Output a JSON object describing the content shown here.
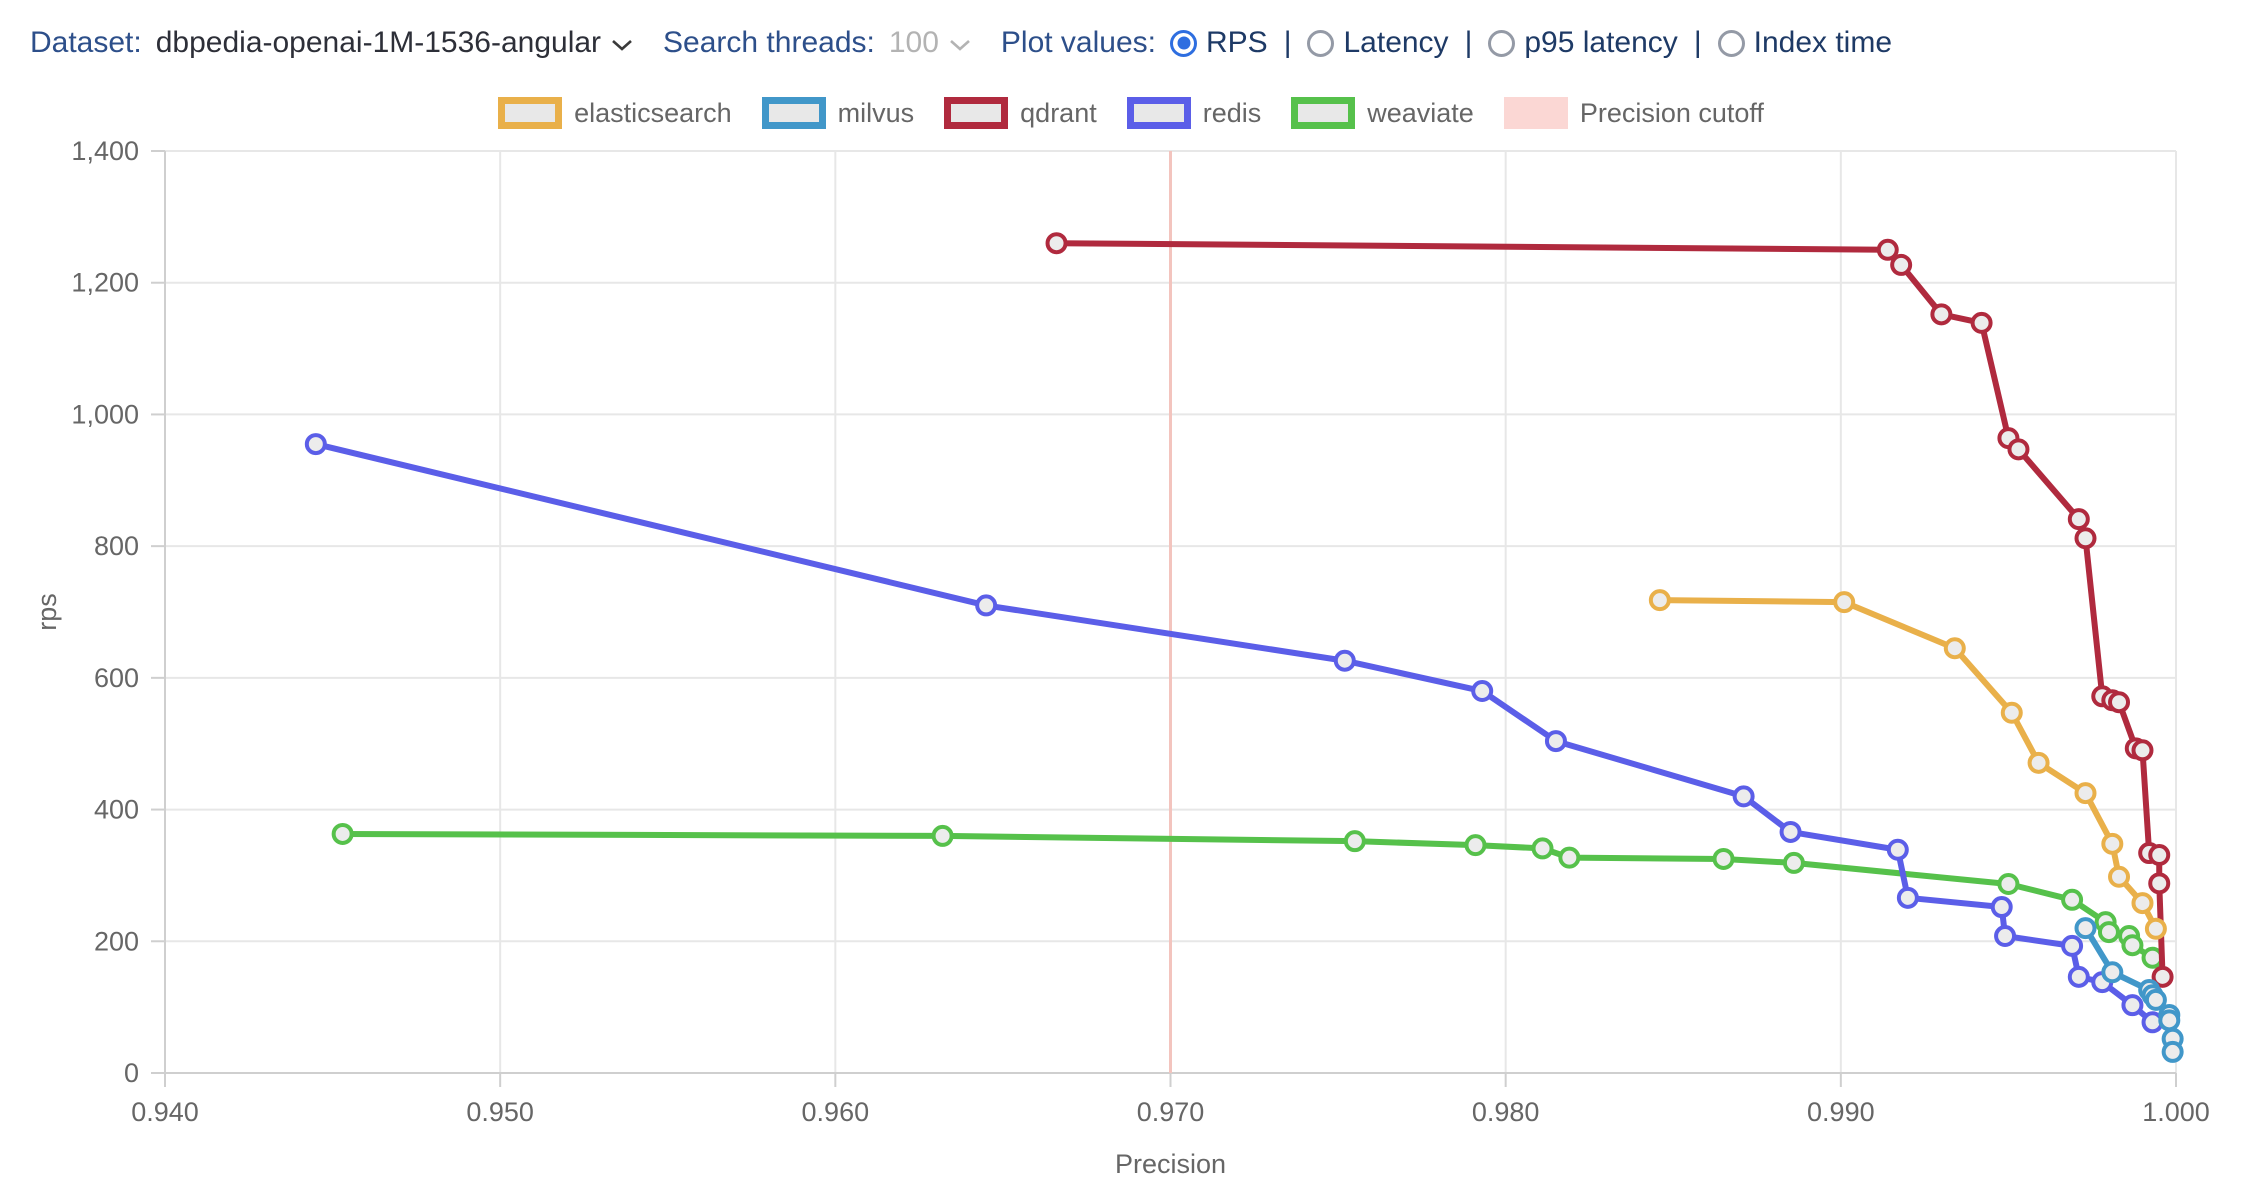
{
  "header": {
    "dataset_label": "Dataset:",
    "dataset_value": "dbpedia-openai-1M-1536-angular",
    "search_threads_label": "Search threads:",
    "search_threads_value": "100",
    "plot_values_label": "Plot values:",
    "plot_options": [
      {
        "label": "RPS",
        "selected": true
      },
      {
        "label": "Latency",
        "selected": false
      },
      {
        "label": "p95 latency",
        "selected": false
      },
      {
        "label": "Index time",
        "selected": false
      }
    ]
  },
  "legend": {
    "cutoff_label": "Precision cutoff",
    "cutoff_swatch_color": "#fbd7d4"
  },
  "colors": {
    "header_label_blue": "#2d4f8a",
    "radio_selected_blue": "#2e6ee0",
    "grid_line": "#e7e7e7",
    "axis_line": "#cfcfcf",
    "tick_text": "#666666",
    "cutoff_line": "#f3c4be"
  },
  "chart_data": {
    "type": "line",
    "title": "",
    "xlabel": "Precision",
    "ylabel": "rps",
    "xlim": [
      0.94,
      1.0
    ],
    "ylim": [
      0,
      1400
    ],
    "x_ticks": [
      "0.940",
      "0.950",
      "0.960",
      "0.970",
      "0.980",
      "0.990",
      "1.000"
    ],
    "y_ticks": [
      "0",
      "200",
      "400",
      "600",
      "800",
      "1,000",
      "1,200",
      "1,400"
    ],
    "grid": true,
    "legend_position": "top",
    "cutoff_x": 0.97,
    "series": [
      {
        "name": "elasticsearch",
        "color": "#e9b04a",
        "points": [
          [
            0.9846,
            718
          ],
          [
            0.9901,
            715
          ],
          [
            0.9934,
            645
          ],
          [
            0.9951,
            547
          ],
          [
            0.9959,
            471
          ],
          [
            0.9973,
            425
          ],
          [
            0.9981,
            348
          ],
          [
            0.9983,
            298
          ],
          [
            0.999,
            258
          ],
          [
            0.9994,
            219
          ]
        ]
      },
      {
        "name": "milvus",
        "color": "#4197c9",
        "points": [
          [
            0.9973,
            220
          ],
          [
            0.9981,
            153
          ],
          [
            0.9992,
            126
          ],
          [
            0.9993,
            118
          ],
          [
            0.9994,
            111
          ],
          [
            0.9998,
            88
          ],
          [
            0.9998,
            80
          ],
          [
            0.9999,
            52
          ],
          [
            0.9999,
            32
          ]
        ]
      },
      {
        "name": "qdrant",
        "color": "#b02a3e",
        "points": [
          [
            0.9666,
            1260
          ],
          [
            0.9914,
            1250
          ],
          [
            0.9918,
            1227
          ],
          [
            0.993,
            1152
          ],
          [
            0.9942,
            1139
          ],
          [
            0.995,
            964
          ],
          [
            0.9953,
            947
          ],
          [
            0.9971,
            841
          ],
          [
            0.9973,
            812
          ],
          [
            0.9978,
            572
          ],
          [
            0.9981,
            566
          ],
          [
            0.9983,
            563
          ],
          [
            0.9988,
            493
          ],
          [
            0.999,
            490
          ],
          [
            0.9992,
            334
          ],
          [
            0.9995,
            331
          ],
          [
            0.9995,
            288
          ],
          [
            0.9996,
            146
          ]
        ]
      },
      {
        "name": "redis",
        "color": "#5b5ee8",
        "points": [
          [
            0.9445,
            955
          ],
          [
            0.9645,
            710
          ],
          [
            0.9752,
            626
          ],
          [
            0.9793,
            580
          ],
          [
            0.9815,
            504
          ],
          [
            0.9871,
            420
          ],
          [
            0.9885,
            366
          ],
          [
            0.9917,
            339
          ],
          [
            0.992,
            266
          ],
          [
            0.9948,
            252
          ],
          [
            0.9949,
            208
          ],
          [
            0.9969,
            193
          ],
          [
            0.9971,
            146
          ],
          [
            0.9978,
            138
          ],
          [
            0.9987,
            103
          ],
          [
            0.9993,
            77
          ]
        ]
      },
      {
        "name": "weaviate",
        "color": "#56c14b",
        "points": [
          [
            0.9453,
            363
          ],
          [
            0.9632,
            360
          ],
          [
            0.9755,
            352
          ],
          [
            0.9791,
            346
          ],
          [
            0.9811,
            341
          ],
          [
            0.9819,
            327
          ],
          [
            0.9865,
            325
          ],
          [
            0.9886,
            319
          ],
          [
            0.995,
            287
          ],
          [
            0.9969,
            263
          ],
          [
            0.9979,
            229
          ],
          [
            0.998,
            214
          ],
          [
            0.9986,
            208
          ],
          [
            0.9987,
            194
          ],
          [
            0.9993,
            175
          ]
        ]
      }
    ]
  }
}
